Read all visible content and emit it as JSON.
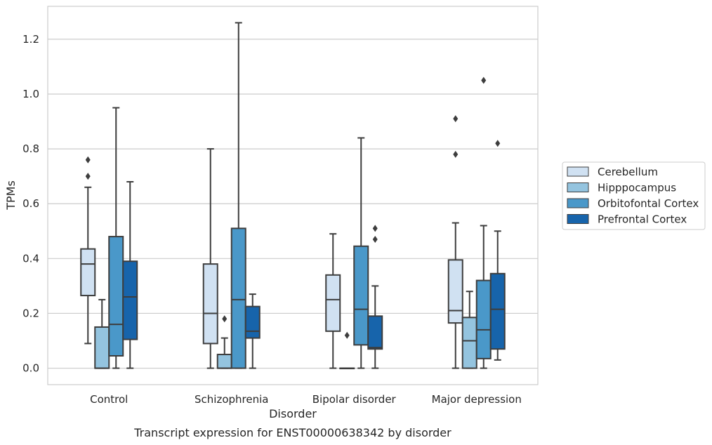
{
  "chart_data": {
    "type": "box",
    "ylabel": "TPMs",
    "xlabel": "Disorder",
    "caption": "Transcript expression for ENST00000638342 by disorder",
    "ylim": [
      -0.06,
      1.32
    ],
    "y_ticks": [
      "0.0",
      "0.2",
      "0.4",
      "0.6",
      "0.8",
      "1.0",
      "1.2"
    ],
    "y_tick_values": [
      0,
      0.2,
      0.4,
      0.6,
      0.8,
      1.0,
      1.2
    ],
    "grid": "horizontal",
    "legend_placement": "right",
    "categories": [
      "Control",
      "Schizophrenia",
      "Bipolar disorder",
      "Major depression"
    ],
    "series": [
      {
        "name": "Cerebellum",
        "color": "#d0e1f2",
        "boxes": [
          {
            "min": 0.09,
            "q1": 0.265,
            "median": 0.38,
            "q3": 0.435,
            "max": 0.66,
            "outliers": [
              0.7,
              0.76
            ]
          },
          {
            "min": 0.0,
            "q1": 0.09,
            "median": 0.2,
            "q3": 0.38,
            "max": 0.8,
            "outliers": []
          },
          {
            "min": 0.0,
            "q1": 0.135,
            "median": 0.25,
            "q3": 0.34,
            "max": 0.49,
            "outliers": []
          },
          {
            "min": 0.0,
            "q1": 0.165,
            "median": 0.21,
            "q3": 0.395,
            "max": 0.53,
            "outliers": [
              0.78,
              0.91
            ]
          }
        ]
      },
      {
        "name": "Hipppocampus",
        "color": "#94c4df",
        "boxes": [
          {
            "min": 0.0,
            "q1": 0.0,
            "median": 0.0,
            "q3": 0.15,
            "max": 0.25,
            "outliers": []
          },
          {
            "min": 0.0,
            "q1": 0.0,
            "median": 0.0,
            "q3": 0.05,
            "max": 0.11,
            "outliers": [
              0.18
            ]
          },
          {
            "min": 0.0,
            "q1": 0.0,
            "median": 0.0,
            "q3": 0.0,
            "max": 0.0,
            "outliers": [
              0.12
            ]
          },
          {
            "min": 0.0,
            "q1": 0.0,
            "median": 0.1,
            "q3": 0.185,
            "max": 0.28,
            "outliers": []
          }
        ]
      },
      {
        "name": "Orbitofontal Cortex",
        "color": "#4a98c9",
        "boxes": [
          {
            "min": 0.0,
            "q1": 0.045,
            "median": 0.16,
            "q3": 0.48,
            "max": 0.95,
            "outliers": []
          },
          {
            "min": 0.0,
            "q1": 0.0,
            "median": 0.25,
            "q3": 0.51,
            "max": 1.26,
            "outliers": []
          },
          {
            "min": 0.0,
            "q1": 0.085,
            "median": 0.215,
            "q3": 0.445,
            "max": 0.84,
            "outliers": []
          },
          {
            "min": 0.0,
            "q1": 0.035,
            "median": 0.14,
            "q3": 0.32,
            "max": 0.52,
            "outliers": [
              1.05
            ]
          }
        ]
      },
      {
        "name": "Prefrontal Cortex",
        "color": "#1764ab",
        "boxes": [
          {
            "min": 0.0,
            "q1": 0.105,
            "median": 0.26,
            "q3": 0.39,
            "max": 0.68,
            "outliers": []
          },
          {
            "min": 0.0,
            "q1": 0.11,
            "median": 0.135,
            "q3": 0.225,
            "max": 0.27,
            "outliers": []
          },
          {
            "min": 0.0,
            "q1": 0.07,
            "median": 0.075,
            "q3": 0.19,
            "max": 0.3,
            "outliers": [
              0.47,
              0.51
            ]
          },
          {
            "min": 0.03,
            "q1": 0.07,
            "median": 0.215,
            "q3": 0.345,
            "max": 0.5,
            "outliers": [
              0.82
            ]
          }
        ]
      }
    ]
  }
}
